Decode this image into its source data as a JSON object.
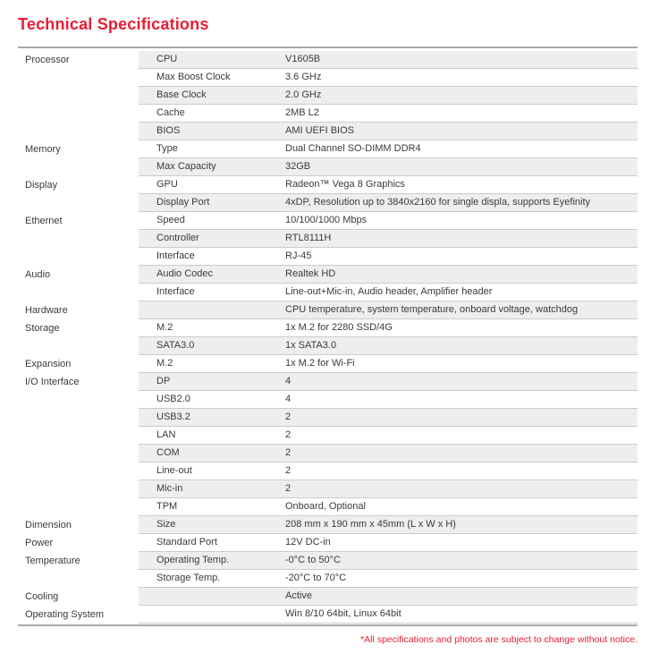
{
  "title": "Technical Specifications",
  "footnote": "*All specifications and photos are subject to change without notice.",
  "colors": {
    "accent_red": "#ea1c33",
    "row_shade": "#eeeef0",
    "row_border": "#cacbcd",
    "table_border": "#a6a8ab",
    "text": "#3a3a3a"
  },
  "table": {
    "rows": [
      {
        "category": "Processor",
        "item": "CPU",
        "value": "V1605B"
      },
      {
        "category": "",
        "item": "Max Boost Clock",
        "value": "3.6 GHz"
      },
      {
        "category": "",
        "item": "Base Clock",
        "value": "2.0 GHz"
      },
      {
        "category": "",
        "item": "Cache",
        "value": "2MB L2"
      },
      {
        "category": "",
        "item": "BIOS",
        "value": "AMI UEFI BIOS"
      },
      {
        "category": "Memory",
        "item": "Type",
        "value": "Dual Channel SO-DIMM DDR4"
      },
      {
        "category": "",
        "item": "Max Capacity",
        "value": "32GB"
      },
      {
        "category": "Display",
        "item": "GPU",
        "value": "Radeon™ Vega 8 Graphics"
      },
      {
        "category": "",
        "item": "Display Port",
        "value": "4xDP, Resolution up to 3840x2160 for single displa, supports Eyefinity"
      },
      {
        "category": "Ethernet",
        "item": "Speed",
        "value": "10/100/1000 Mbps"
      },
      {
        "category": "",
        "item": "Controller",
        "value": "RTL8111H"
      },
      {
        "category": "",
        "item": "Interface",
        "value": "RJ-45"
      },
      {
        "category": "Audio",
        "item": "Audio Codec",
        "value": "Realtek HD"
      },
      {
        "category": "",
        "item": "Interface",
        "value": "Line-out+Mic-in, Audio header, Amplifier header"
      },
      {
        "category": "Hardware",
        "item": "",
        "value": "CPU temperature, system temperature, onboard voltage, watchdog"
      },
      {
        "category": "Storage",
        "item": "M.2",
        "value": "1x M.2 for 2280 SSD/4G"
      },
      {
        "category": "",
        "item": "SATA3.0",
        "value": "1x SATA3.0"
      },
      {
        "category": "Expansion",
        "item": "M.2",
        "value": "1x M.2 for Wi-Fi"
      },
      {
        "category": "I/O Interface",
        "item": "DP",
        "value": "4"
      },
      {
        "category": "",
        "item": "USB2.0",
        "value": "4"
      },
      {
        "category": "",
        "item": "USB3.2",
        "value": "2"
      },
      {
        "category": "",
        "item": "LAN",
        "value": "2"
      },
      {
        "category": "",
        "item": "COM",
        "value": "2"
      },
      {
        "category": "",
        "item": "Line-out",
        "value": "2"
      },
      {
        "category": "",
        "item": "Mic-in",
        "value": "2"
      },
      {
        "category": "",
        "item": "TPM",
        "value": "Onboard, Optional"
      },
      {
        "category": "Dimension",
        "item": "Size",
        "value": "208 mm x 190 mm x 45mm (L x W x H)"
      },
      {
        "category": "Power",
        "item": "Standard Port",
        "value": "12V DC-in"
      },
      {
        "category": "Temperature",
        "item": "Operating Temp.",
        "value": "-0°C to 50°C"
      },
      {
        "category": "",
        "item": "Storage Temp.",
        "value": "-20°C to 70°C"
      },
      {
        "category": "Cooling",
        "item": "",
        "value": "Active"
      },
      {
        "category": "Operating System",
        "item": "",
        "value": "Win 8/10 64bit, Linux 64bit"
      }
    ]
  }
}
